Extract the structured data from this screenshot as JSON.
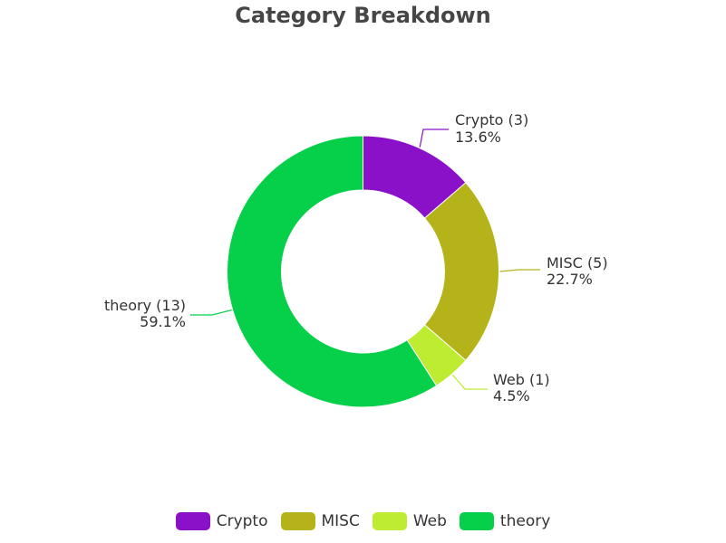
{
  "chart_data": {
    "type": "pie",
    "variant": "donut",
    "title": "Category Breakdown",
    "categories": [
      "Crypto",
      "MISC",
      "Web",
      "theory"
    ],
    "values": [
      3,
      5,
      1,
      13
    ],
    "percentages": [
      "13.6%",
      "22.7%",
      "4.5%",
      "59.1%"
    ],
    "slice_labels": [
      "Crypto (3)",
      "MISC (5)",
      "Web (1)",
      "theory (13)"
    ],
    "colors": [
      "#8a11c8",
      "#b4b31a",
      "#bdec31",
      "#06d04a"
    ],
    "legend_position": "bottom"
  }
}
